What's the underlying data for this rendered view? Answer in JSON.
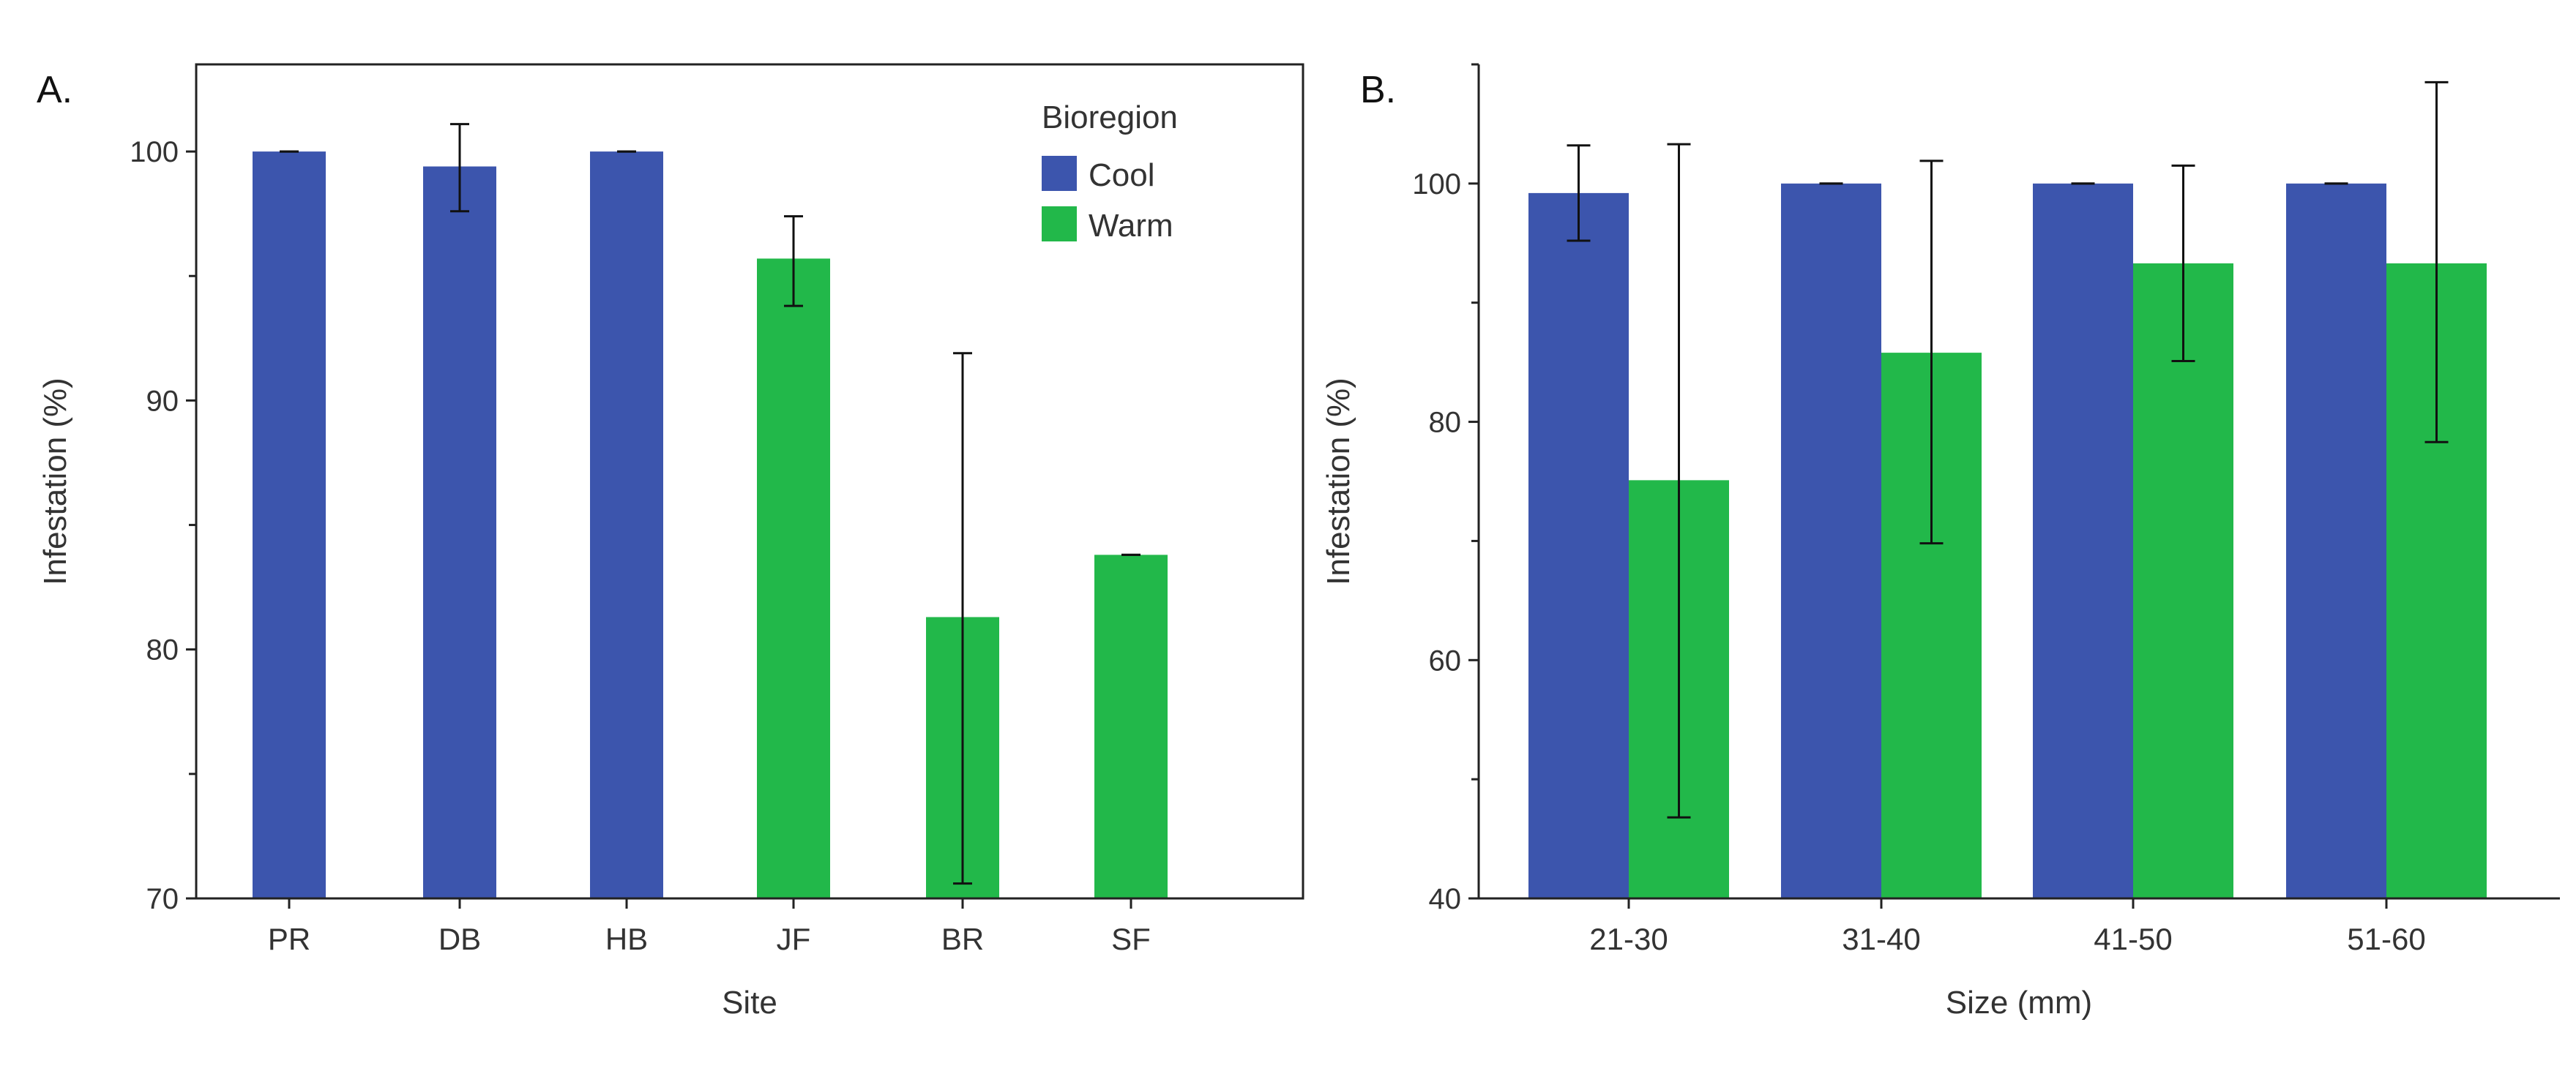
{
  "colors": {
    "cool": "#3c55ad",
    "warm": "#22b84a"
  },
  "chart_data": [
    {
      "type": "bar",
      "panel_label": "A.",
      "title": "",
      "xlabel": "Site",
      "ylabel": "Infestation (%)",
      "ylim": [
        70,
        103.5
      ],
      "yticks": [
        70,
        80,
        90,
        100
      ],
      "yminor": [
        75,
        85,
        95
      ],
      "categories": [
        "PR",
        "DB",
        "HB",
        "JF",
        "BR",
        "SF"
      ],
      "legend": {
        "title": "Bioregion",
        "entries": [
          "Cool",
          "Warm"
        ],
        "position": "top-right"
      },
      "bars": [
        {
          "category": "PR",
          "series": "Cool",
          "value": 100,
          "err_low": 100,
          "err_high": 100
        },
        {
          "category": "DB",
          "series": "Cool",
          "value": 99.4,
          "err_low": 97.6,
          "err_high": 101.1
        },
        {
          "category": "HB",
          "series": "Cool",
          "value": 100,
          "err_low": 100,
          "err_high": 100
        },
        {
          "category": "JF",
          "series": "Warm",
          "value": 95.7,
          "err_low": 93.8,
          "err_high": 97.4
        },
        {
          "category": "BR",
          "series": "Warm",
          "value": 81.3,
          "err_low": 70.6,
          "err_high": 91.9
        },
        {
          "category": "SF",
          "series": "Warm",
          "value": 83.8,
          "err_low": 83.8,
          "err_high": 83.8
        }
      ]
    },
    {
      "type": "bar",
      "panel_label": "B.",
      "title": "",
      "xlabel": "Size (mm)",
      "ylabel": "Infestation (%)",
      "ylim": [
        40,
        110
      ],
      "yticks": [
        40,
        60,
        80,
        100
      ],
      "yminor": [
        50,
        70,
        90,
        110
      ],
      "categories": [
        "21-30",
        "31-40",
        "41-50",
        "51-60"
      ],
      "series": [
        {
          "name": "Cool",
          "values": [
            99.2,
            100,
            100,
            100
          ],
          "err_low": [
            95.2,
            100,
            100,
            100
          ],
          "err_high": [
            103.2,
            100,
            100,
            100
          ]
        },
        {
          "name": "Warm",
          "values": [
            75.1,
            85.8,
            93.3,
            93.3
          ],
          "err_low": [
            46.8,
            69.8,
            85.1,
            78.3
          ],
          "err_high": [
            103.3,
            101.9,
            101.5,
            108.5
          ]
        }
      ]
    }
  ]
}
